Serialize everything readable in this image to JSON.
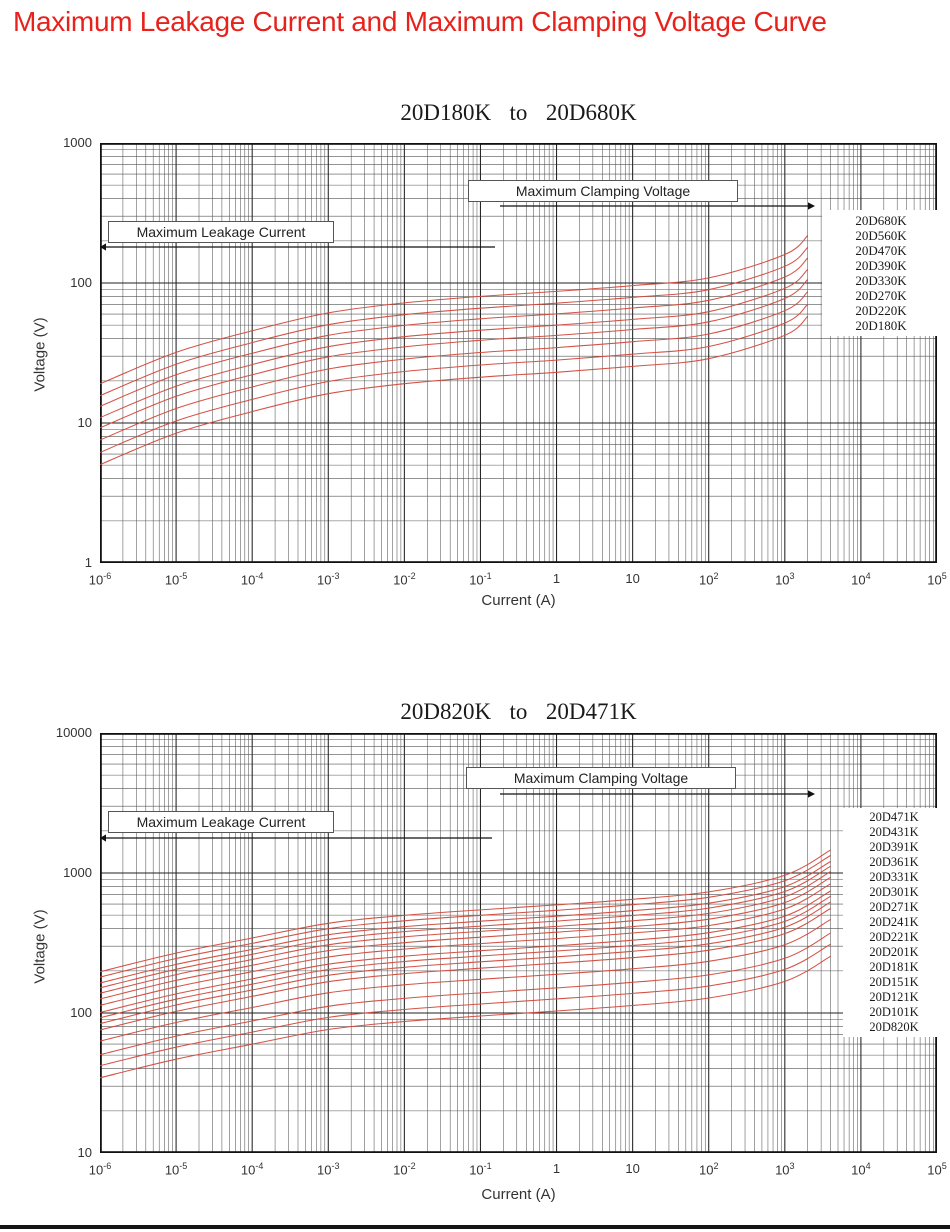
{
  "page": {
    "title": "Maximum Leakage Current and Maximum Clamping Voltage Curve"
  },
  "chart_data": [
    {
      "type": "line",
      "title": "20D180K to 20D680K",
      "xlabel": "Current (A)",
      "ylabel": "Voltage (V)",
      "x_scale": "log",
      "y_scale": "log",
      "xlim": [
        1e-06,
        100000.0
      ],
      "ylim": [
        1,
        1000
      ],
      "grid": "log-major-minor",
      "x_ticks": [
        {
          "b": "10",
          "e": "-6"
        },
        {
          "b": "10",
          "e": "-5"
        },
        {
          "b": "10",
          "e": "-4"
        },
        {
          "b": "10",
          "e": "-3"
        },
        {
          "b": "10",
          "e": "-2"
        },
        {
          "b": "10",
          "e": "-1"
        },
        {
          "b": "1",
          "e": ""
        },
        {
          "b": "10",
          "e": ""
        },
        {
          "b": "10",
          "e": "2"
        },
        {
          "b": "10",
          "e": "3"
        },
        {
          "b": "10",
          "e": "4"
        },
        {
          "b": "10",
          "e": "5"
        }
      ],
      "y_ticks": [
        "1000",
        "100",
        "10",
        "1"
      ],
      "annotations": {
        "clamping_label": "Maximum Clamping Voltage",
        "leakage_label": "Maximum Leakage Current"
      },
      "curve_log10_current": [
        -6,
        -5,
        -4,
        -3,
        -2,
        -1,
        0,
        1,
        2,
        3,
        3.3
      ],
      "voltage_ratio_vs_v1mA": [
        0.28,
        0.47,
        0.67,
        0.9,
        1.06,
        1.18,
        1.28,
        1.41,
        1.6,
        2.35,
        3.2
      ],
      "series": [
        {
          "name": "20D680K",
          "v_1mA": 68
        },
        {
          "name": "20D560K",
          "v_1mA": 56
        },
        {
          "name": "20D470K",
          "v_1mA": 47
        },
        {
          "name": "20D390K",
          "v_1mA": 39
        },
        {
          "name": "20D330K",
          "v_1mA": 33
        },
        {
          "name": "20D270K",
          "v_1mA": 27
        },
        {
          "name": "20D220K",
          "v_1mA": 22
        },
        {
          "name": "20D180K",
          "v_1mA": 18
        }
      ]
    },
    {
      "type": "line",
      "title": "20D820K to 20D471K",
      "xlabel": "Current (A)",
      "ylabel": "Voltage (V)",
      "x_scale": "log",
      "y_scale": "log",
      "xlim": [
        1e-06,
        100000.0
      ],
      "ylim": [
        10,
        10000
      ],
      "grid": "log-major-minor",
      "x_ticks": [
        {
          "b": "10",
          "e": "-6"
        },
        {
          "b": "10",
          "e": "-5"
        },
        {
          "b": "10",
          "e": "-4"
        },
        {
          "b": "10",
          "e": "-3"
        },
        {
          "b": "10",
          "e": "-2"
        },
        {
          "b": "10",
          "e": "-1"
        },
        {
          "b": "1",
          "e": ""
        },
        {
          "b": "10",
          "e": ""
        },
        {
          "b": "10",
          "e": "2"
        },
        {
          "b": "10",
          "e": "3"
        },
        {
          "b": "10",
          "e": "4"
        },
        {
          "b": "10",
          "e": "5"
        }
      ],
      "y_ticks": [
        "10000",
        "1000",
        "100",
        "10"
      ],
      "annotations": {
        "clamping_label": "Maximum Clamping Voltage",
        "leakage_label": "Maximum Leakage Current"
      },
      "curve_log10_current": [
        -6,
        -5,
        -4,
        -3,
        -2,
        -1,
        0,
        1,
        2,
        3,
        3.6
      ],
      "voltage_ratio_vs_v1mA": [
        0.42,
        0.57,
        0.73,
        0.93,
        1.06,
        1.16,
        1.26,
        1.38,
        1.56,
        2.05,
        3.1
      ],
      "series": [
        {
          "name": "20D471K",
          "v_1mA": 470
        },
        {
          "name": "20D431K",
          "v_1mA": 430
        },
        {
          "name": "20D391K",
          "v_1mA": 390
        },
        {
          "name": "20D361K",
          "v_1mA": 360
        },
        {
          "name": "20D331K",
          "v_1mA": 330
        },
        {
          "name": "20D301K",
          "v_1mA": 300
        },
        {
          "name": "20D271K",
          "v_1mA": 270
        },
        {
          "name": "20D241K",
          "v_1mA": 240
        },
        {
          "name": "20D221K",
          "v_1mA": 220
        },
        {
          "name": "20D201K",
          "v_1mA": 200
        },
        {
          "name": "20D181K",
          "v_1mA": 180
        },
        {
          "name": "20D151K",
          "v_1mA": 150
        },
        {
          "name": "20D121K",
          "v_1mA": 120
        },
        {
          "name": "20D101K",
          "v_1mA": 100
        },
        {
          "name": "20D820K",
          "v_1mA": 82
        }
      ]
    }
  ]
}
